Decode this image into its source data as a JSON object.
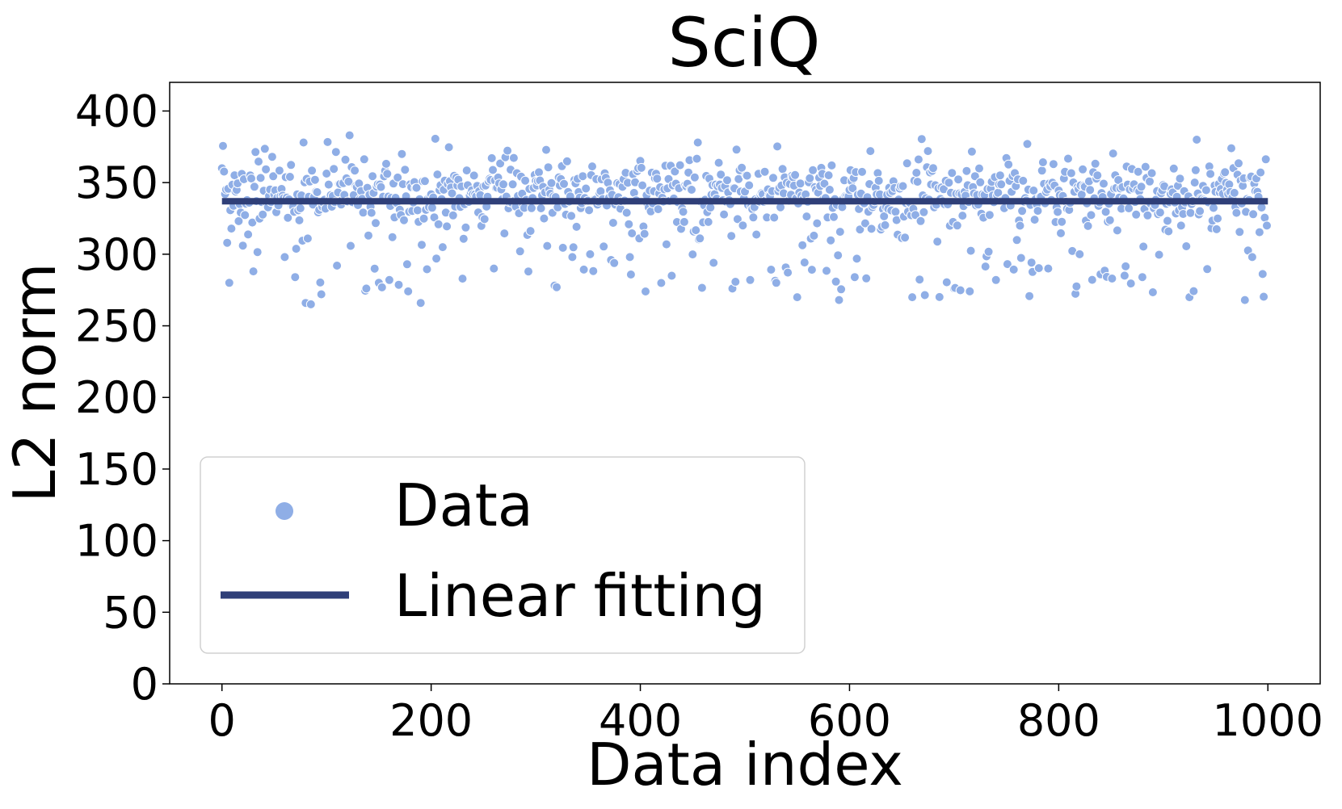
{
  "chart_data": {
    "type": "scatter",
    "title": "SciQ",
    "xlabel": "Data index",
    "ylabel": "L2 norm",
    "xlim": [
      -50,
      1050
    ],
    "ylim": [
      0,
      420
    ],
    "xticks": [
      0,
      200,
      400,
      600,
      800,
      1000
    ],
    "yticks": [
      0,
      50,
      100,
      150,
      200,
      250,
      300,
      350,
      400
    ],
    "grid": false,
    "legend": {
      "placement": "lower-left",
      "entries": [
        "Data",
        "Linear fitting"
      ]
    },
    "series": [
      {
        "name": "Data",
        "kind": "scatter",
        "color": "#8faee6",
        "n_points": 1000,
        "x_range": [
          0,
          999
        ],
        "central_band": [
          325,
          360
        ],
        "min": 265,
        "max": 383,
        "sample_points": [
          [
            0,
            360
          ],
          [
            5,
            308
          ],
          [
            7,
            280
          ],
          [
            20,
            306
          ],
          [
            30,
            288
          ],
          [
            48,
            368
          ],
          [
            60,
            298
          ],
          [
            70,
            284
          ],
          [
            80,
            266
          ],
          [
            85,
            265
          ],
          [
            95,
            272
          ],
          [
            110,
            292
          ],
          [
            122,
            383
          ],
          [
            138,
            276
          ],
          [
            150,
            280
          ],
          [
            160,
            282
          ],
          [
            172,
            370
          ],
          [
            190,
            266
          ],
          [
            205,
            297
          ],
          [
            260,
            290
          ],
          [
            285,
            302
          ],
          [
            320,
            277
          ],
          [
            335,
            298
          ],
          [
            352,
            300
          ],
          [
            372,
            296
          ],
          [
            390,
            298
          ],
          [
            405,
            274
          ],
          [
            430,
            285
          ],
          [
            455,
            378
          ],
          [
            470,
            294
          ],
          [
            488,
            276
          ],
          [
            505,
            282
          ],
          [
            530,
            280
          ],
          [
            550,
            270
          ],
          [
            590,
            268
          ],
          [
            605,
            284
          ],
          [
            620,
            372
          ],
          [
            660,
            270
          ],
          [
            675,
            372
          ],
          [
            700,
            276
          ],
          [
            740,
            282
          ],
          [
            770,
            377
          ],
          [
            790,
            290
          ],
          [
            820,
            300
          ],
          [
            840,
            286
          ],
          [
            880,
            284
          ],
          [
            905,
            316
          ],
          [
            925,
            270
          ],
          [
            932,
            380
          ],
          [
            965,
            374
          ],
          [
            978,
            268
          ],
          [
            985,
            298
          ],
          [
            999,
            320
          ]
        ]
      },
      {
        "name": "Linear fitting",
        "kind": "line",
        "color": "#2f3f78",
        "x": [
          0,
          1000
        ],
        "y": [
          337,
          337
        ]
      }
    ]
  }
}
